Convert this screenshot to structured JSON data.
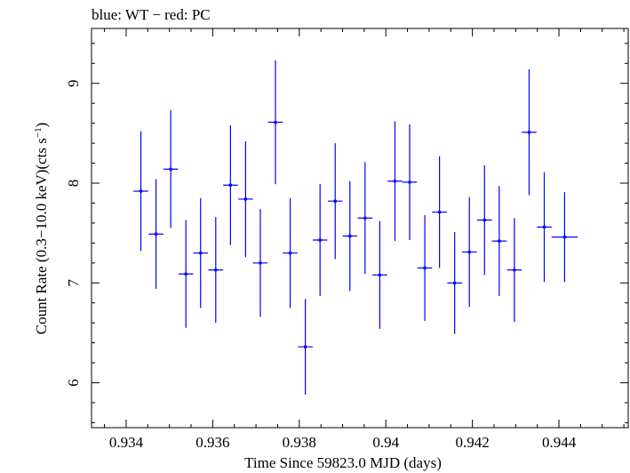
{
  "chart_data": {
    "type": "scatter",
    "title": "blue: WT − red: PC",
    "xlabel": "Time Since 59823.0 MJD (days)",
    "ylabel_main": "Count Rate (0.3−10.0 keV)(cts s",
    "ylabel_sup": "−1",
    "ylabel_close": ")",
    "xlim": [
      0.9332,
      0.9456
    ],
    "ylim": [
      5.55,
      9.55
    ],
    "x_ticks": [
      0.934,
      0.936,
      0.938,
      0.94,
      0.942,
      0.944
    ],
    "x_tick_labels": [
      "0.934",
      "0.936",
      "0.938",
      "0.94",
      "0.942",
      "0.944"
    ],
    "y_ticks": [
      6,
      7,
      8,
      9
    ],
    "y_tick_labels": [
      "6",
      "7",
      "8",
      "9"
    ],
    "grid": false,
    "colors": {
      "WT": "#0000ff",
      "axes": "#000000"
    },
    "series": [
      {
        "name": "WT",
        "x": [
          0.93434,
          0.93469,
          0.93503,
          0.93538,
          0.93572,
          0.93607,
          0.93641,
          0.93676,
          0.9371,
          0.93745,
          0.93779,
          0.93814,
          0.93848,
          0.93883,
          0.93917,
          0.93952,
          0.93986,
          0.94021,
          0.94055,
          0.9409,
          0.94124,
          0.94159,
          0.94193,
          0.94228,
          0.94262,
          0.94297,
          0.94331,
          0.94366,
          0.94413
        ],
        "y": [
          7.92,
          7.49,
          8.14,
          7.09,
          7.3,
          7.13,
          7.98,
          7.84,
          7.2,
          8.61,
          7.3,
          6.36,
          7.43,
          7.82,
          7.47,
          7.65,
          7.08,
          8.02,
          8.01,
          7.15,
          7.71,
          7.0,
          7.31,
          7.63,
          7.42,
          7.13,
          8.51,
          7.56,
          7.46
        ],
        "y_err": [
          0.6,
          0.55,
          0.59,
          0.54,
          0.55,
          0.53,
          0.6,
          0.58,
          0.54,
          0.62,
          0.55,
          0.48,
          0.56,
          0.58,
          0.55,
          0.56,
          0.54,
          0.6,
          0.58,
          0.53,
          0.56,
          0.51,
          0.55,
          0.55,
          0.55,
          0.52,
          0.63,
          0.55,
          0.45
        ],
        "x_err": [
          0.00017,
          0.00017,
          0.00017,
          0.00017,
          0.00017,
          0.00017,
          0.00017,
          0.00017,
          0.00017,
          0.00017,
          0.00017,
          0.00017,
          0.00017,
          0.00017,
          0.00017,
          0.00017,
          0.00017,
          0.00017,
          0.00017,
          0.00017,
          0.00017,
          0.00017,
          0.00017,
          0.00017,
          0.00017,
          0.00017,
          0.00017,
          0.00017,
          0.0003
        ]
      }
    ]
  }
}
